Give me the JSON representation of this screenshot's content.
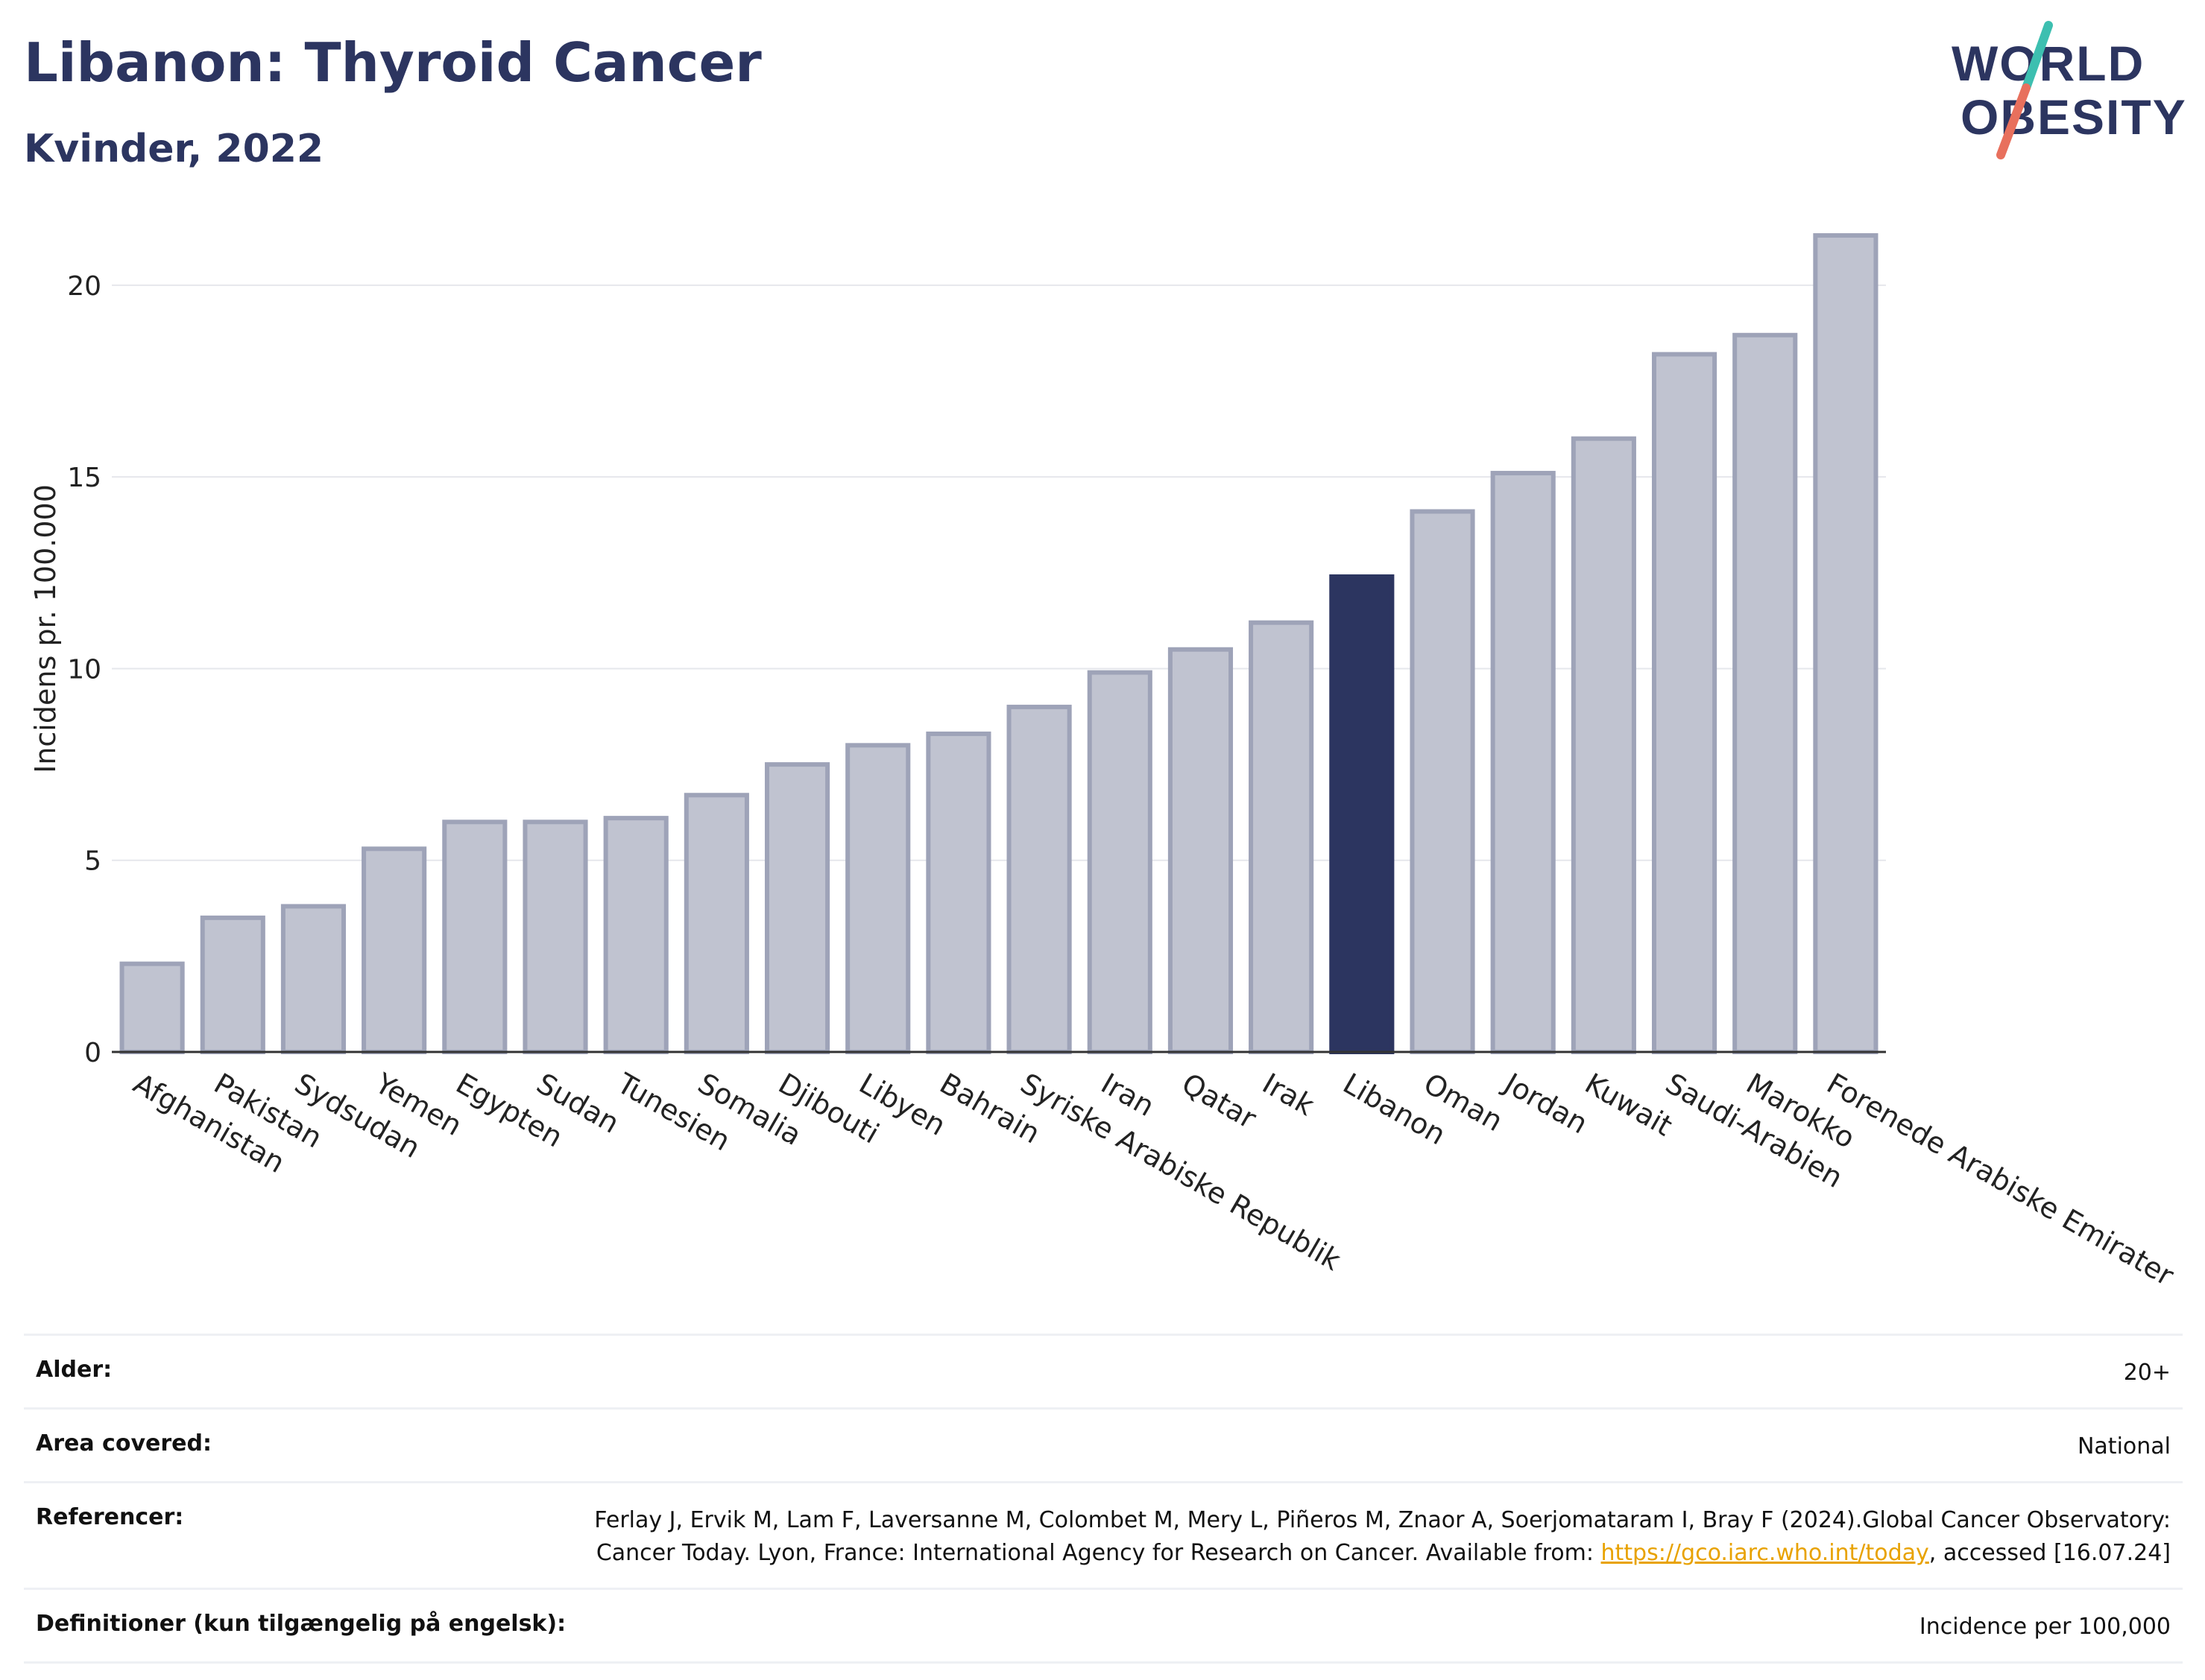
{
  "header": {
    "title": "Libanon: Thyroid Cancer",
    "subtitle": "Kvinder, 2022"
  },
  "logo": {
    "line1": "WORLD",
    "line2": "OBESITY",
    "accent_colors": [
      "#3dbfb0",
      "#e8705d"
    ],
    "text_color": "#2c3560"
  },
  "colors": {
    "bar_default": "#c0c3d0",
    "bar_border": "#9ea3b8",
    "bar_highlight": "#2c3560",
    "grid": "#e6e7ec",
    "axis": "#333333"
  },
  "chart_data": {
    "type": "bar",
    "ylabel": "Incidens pr. 100.000",
    "ylim": [
      0,
      22
    ],
    "yticks": [
      0,
      5,
      10,
      15,
      20
    ],
    "grid": true,
    "highlight": "Libanon",
    "categories": [
      "Afghanistan",
      "Pakistan",
      "Sydsudan",
      "Yemen",
      "Egypten",
      "Sudan",
      "Tunesien",
      "Somalia",
      "Djibouti",
      "Libyen",
      "Bahrain",
      "Syriske Arabiske Republik",
      "Iran",
      "Qatar",
      "Irak",
      "Libanon",
      "Oman",
      "Jordan",
      "Kuwait",
      "Saudi-Arabien",
      "Marokko",
      "Forenede Arabiske Emirater"
    ],
    "values": [
      2.3,
      3.5,
      3.8,
      5.3,
      6.0,
      6.0,
      6.1,
      6.7,
      7.5,
      8.0,
      8.3,
      9.0,
      9.9,
      10.5,
      11.2,
      12.4,
      14.1,
      15.1,
      16.0,
      18.2,
      18.7,
      21.3
    ]
  },
  "meta": {
    "age_label": "Alder:",
    "age_value": "20+",
    "area_label": "Area covered:",
    "area_value": "National",
    "ref_label": "Referencer:",
    "ref_text_before": "Ferlay J, Ervik M, Lam F, Laversanne M, Colombet M, Mery L, Piñeros M, Znaor A, Soerjomataram I, Bray F (2024).Global Cancer Observatory: Cancer Today. Lyon, France: International Agency for Research on Cancer. Available from:",
    "ref_link": "https://gco.iarc.who.int/today",
    "ref_text_after": ", accessed [16.07.24]",
    "def_label": "Definitioner (kun tilgængelig på engelsk):",
    "def_value": "Incidence per 100,000"
  }
}
